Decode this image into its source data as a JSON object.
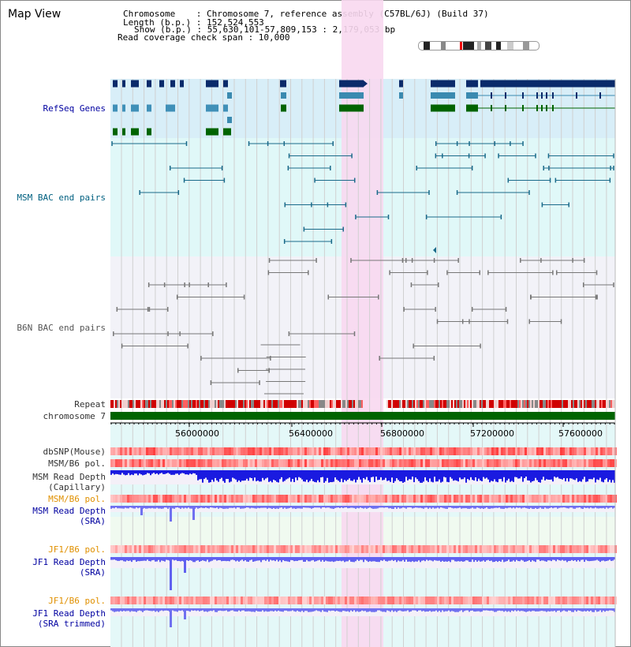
{
  "title": "Map View",
  "header": {
    "chromosome": "Chromosome    : Chromosome 7, reference assembly (C57BL/6J) (Build 37)",
    "length": "Length (b.p.) : 152,524,553",
    "show": "Show (b.p.) : 55,630,101-57,809,153 : 2,179,053 bp",
    "coverage": "Read coverage check span : 10,000"
  },
  "tracks": {
    "refseq": "RefSeq Genes",
    "msm_bac": "MSM BAC end pairs",
    "b6n_bac": "B6N BAC end pairs",
    "repeat": "Repeat",
    "chromosome": "chromosome 7",
    "dbsnp": "dbSNP(Mouse)",
    "msm_b6_pol_1": "MSM/B6 pol.",
    "msm_read_depth_cap_1": "MSM Read Depth",
    "msm_read_depth_cap_2": "(Capillary)",
    "msm_b6_pol_2": "MSM/B6 pol.",
    "msm_read_depth_sra_1": "MSM Read Depth",
    "msm_read_depth_sra_2": "(SRA)",
    "jf1_b6_pol_1": "JF1/B6 pol.",
    "jf1_read_depth_sra_1": "JF1 Read Depth",
    "jf1_read_depth_sra_2": "(SRA)",
    "jf1_b6_pol_2": "JF1/B6 pol.",
    "jf1_read_depth_trim_1": "JF1 Read Depth",
    "jf1_read_depth_trim_2": "(SRA trimmed)"
  },
  "axis": {
    "ticks": [
      "56000000",
      "56400000",
      "56800000",
      "57200000",
      "57600000"
    ],
    "start": 55630101,
    "end": 57809153
  },
  "colors": {
    "refseq_bg": "#d8eef8",
    "bac_bg": "#e0f8f8",
    "b6n_bg": "#f0f0f8",
    "highlight": "#f8d8f0",
    "gene_dark": "#0a2a6a",
    "gene_mid": "#4090b8",
    "gene_green": "#006400",
    "msm_line": "#1a6a8a",
    "b6n_line": "#777777"
  }
}
